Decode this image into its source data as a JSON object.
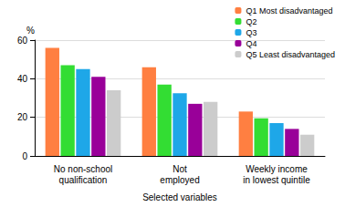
{
  "chart_data": {
    "type": "bar",
    "categories": [
      "No non-school\nqualification",
      "Not\nemployed",
      "Weekly income\nin lowest quintile"
    ],
    "series": [
      {
        "name": "Q1 Most disadvantaged",
        "color": "#ff7f41",
        "values": [
          56,
          46,
          23
        ]
      },
      {
        "name": "Q2",
        "color": "#33dd33",
        "values": [
          47,
          37,
          19.5
        ]
      },
      {
        "name": "Q3",
        "color": "#1ea7e8",
        "values": [
          45,
          32.5,
          17
        ]
      },
      {
        "name": "Q4",
        "color": "#990099",
        "values": [
          41,
          27,
          14
        ]
      },
      {
        "name": "Q5 Least disadvantaged",
        "color": "#cccccc",
        "values": [
          34,
          28,
          11
        ]
      }
    ],
    "x_label": "Selected variables",
    "y_label": "%",
    "ylim": [
      0,
      60
    ],
    "yticks": [
      0,
      20,
      40,
      60
    ],
    "grid": true,
    "legend": "top-right"
  }
}
